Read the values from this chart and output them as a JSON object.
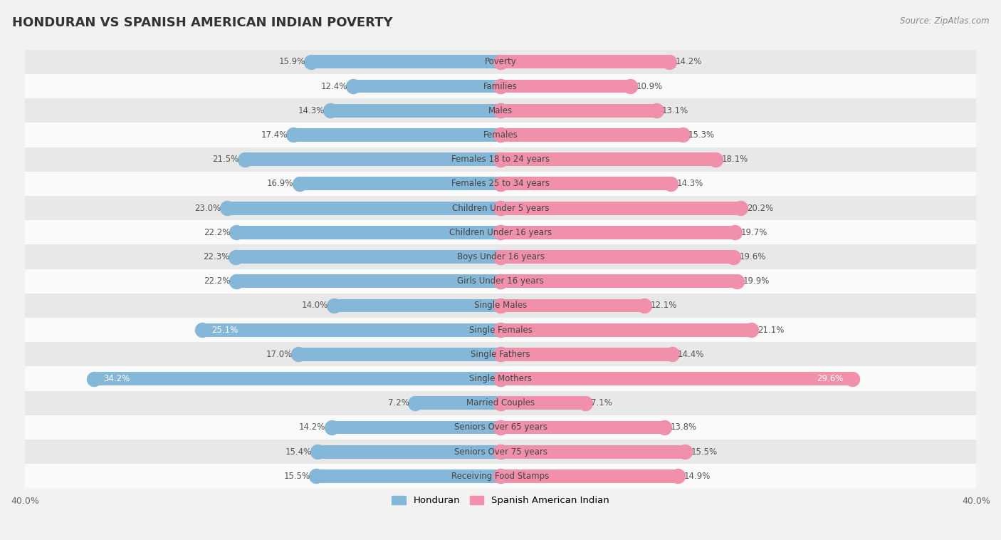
{
  "title": "HONDURAN VS SPANISH AMERICAN INDIAN POVERTY",
  "source": "Source: ZipAtlas.com",
  "categories": [
    "Poverty",
    "Families",
    "Males",
    "Females",
    "Females 18 to 24 years",
    "Females 25 to 34 years",
    "Children Under 5 years",
    "Children Under 16 years",
    "Boys Under 16 years",
    "Girls Under 16 years",
    "Single Males",
    "Single Females",
    "Single Fathers",
    "Single Mothers",
    "Married Couples",
    "Seniors Over 65 years",
    "Seniors Over 75 years",
    "Receiving Food Stamps"
  ],
  "honduran": [
    15.9,
    12.4,
    14.3,
    17.4,
    21.5,
    16.9,
    23.0,
    22.2,
    22.3,
    22.2,
    14.0,
    25.1,
    17.0,
    34.2,
    7.2,
    14.2,
    15.4,
    15.5
  ],
  "spanish": [
    14.2,
    10.9,
    13.1,
    15.3,
    18.1,
    14.3,
    20.2,
    19.7,
    19.6,
    19.9,
    12.1,
    21.1,
    14.4,
    29.6,
    7.1,
    13.8,
    15.5,
    14.9
  ],
  "honduran_color": "#85b8d8",
  "spanish_color": "#f090aa",
  "background_color": "#f2f2f2",
  "row_bg_light": "#fafafa",
  "row_bg_dark": "#e8e8e8",
  "axis_limit": 40.0,
  "legend_honduran": "Honduran",
  "legend_spanish": "Spanish American Indian"
}
